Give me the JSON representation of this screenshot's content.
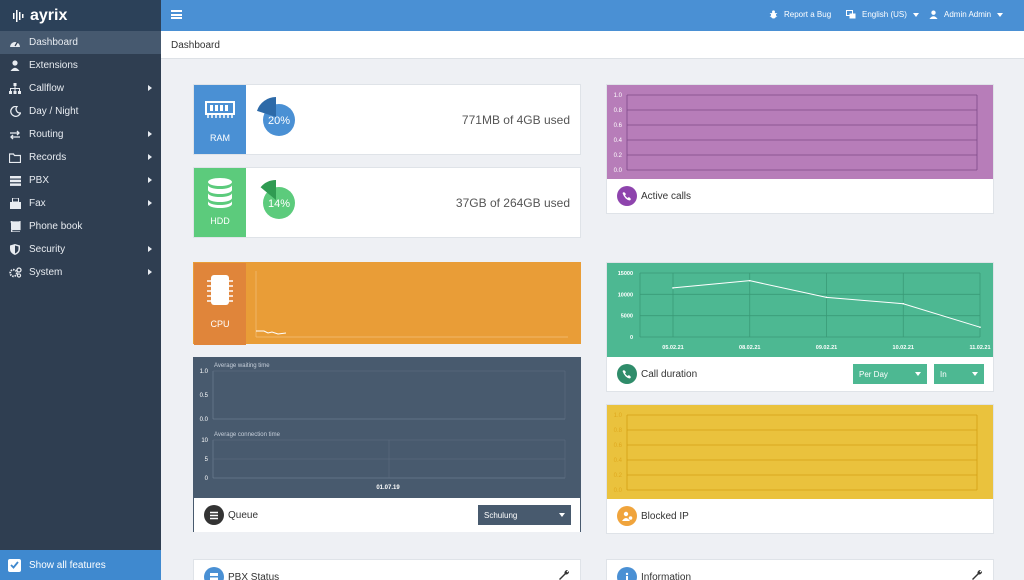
{
  "app": {
    "brand": "ayrix"
  },
  "sidebar": {
    "items": [
      {
        "label": "Dashboard",
        "icon": "dashboard-icon",
        "active": true,
        "submenu": false
      },
      {
        "label": "Extensions",
        "icon": "user-icon",
        "submenu": false
      },
      {
        "label": "Callflow",
        "icon": "sitemap-icon",
        "submenu": true
      },
      {
        "label": "Day / Night",
        "icon": "moon-icon",
        "submenu": false
      },
      {
        "label": "Routing",
        "icon": "exchange-icon",
        "submenu": true
      },
      {
        "label": "Records",
        "icon": "folder-icon",
        "submenu": true
      },
      {
        "label": "PBX",
        "icon": "server-icon",
        "submenu": true
      },
      {
        "label": "Fax",
        "icon": "fax-icon",
        "submenu": true
      },
      {
        "label": "Phone book",
        "icon": "book-icon",
        "submenu": false
      },
      {
        "label": "Security",
        "icon": "shield-icon",
        "submenu": true
      },
      {
        "label": "System",
        "icon": "cogs-icon",
        "submenu": true
      }
    ],
    "show_all_label": "Show all features"
  },
  "topbar": {
    "report_bug": "Report a Bug",
    "language": "English (US)",
    "user": "Admin Admin"
  },
  "breadcrumb": "Dashboard",
  "ram": {
    "label": "RAM",
    "percent_text": "20%",
    "percent": 0.2,
    "used_text": "771MB of 4GB used"
  },
  "hdd": {
    "label": "HDD",
    "percent_text": "14%",
    "percent": 0.14,
    "used_text": "37GB of 264GB used"
  },
  "cpu": {
    "label": "CPU"
  },
  "queue": {
    "waiting_title": "Average waiting time",
    "connection_title": "Average connection time",
    "waiting_ticks": [
      "1.0",
      "0.5",
      "0.0"
    ],
    "connection_ticks": [
      "10",
      "5",
      "0"
    ],
    "date": "01.07.19",
    "title": "Queue",
    "select_value": "Schulung"
  },
  "active_calls": {
    "title": "Active calls",
    "ticks": [
      "1.0",
      "0.8",
      "0.6",
      "0.4",
      "0.2",
      "0.0"
    ]
  },
  "call_duration": {
    "title": "Call duration",
    "period_select": "Per Day",
    "direction_select": "In"
  },
  "blocked_ip": {
    "title": "Blocked IP",
    "ticks": [
      "1.0",
      "0.8",
      "0.6",
      "0.4",
      "0.2",
      "0.0"
    ]
  },
  "pbx_status": {
    "title": "PBX Status"
  },
  "information": {
    "title": "Information"
  },
  "colors": {
    "sidebar": "#2f3e51",
    "topbar": "#4a90d4",
    "ram": "#4a90d4",
    "hdd": "#5ccb7c",
    "cpu": "#e99d37",
    "queue": "#485a6e",
    "active_calls": "#b77db9",
    "call_duration": "#4db892",
    "blocked_ip": "#eac23d"
  },
  "chart_data": [
    {
      "type": "line",
      "name": "Call duration",
      "x": [
        "05.02.21",
        "08.02.21",
        "09.02.21",
        "10.02.21",
        "11.02.21"
      ],
      "series": [
        {
          "values": [
            11500,
            13200,
            9300,
            7800,
            2300
          ]
        }
      ],
      "yticks": [
        "15000",
        "10000",
        "5000",
        "0"
      ],
      "ylim": [
        0,
        15000
      ]
    }
  ]
}
